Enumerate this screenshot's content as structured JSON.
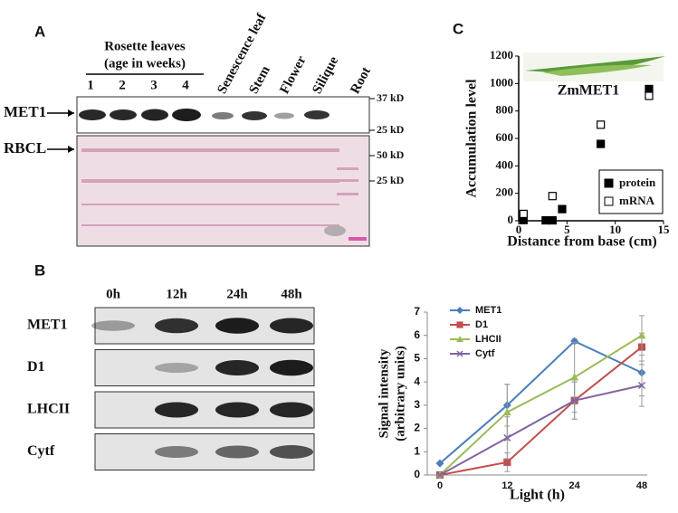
{
  "panel_a": {
    "label": "A",
    "group": [
      "Rosette leaves",
      "(age in weeks)"
    ],
    "lanes": [
      "1",
      "2",
      "3",
      "4"
    ],
    "tissues": [
      "Senescence leaf",
      "Stem",
      "Flower",
      "Silique",
      "Root"
    ],
    "rows": [
      "MET1",
      "RBCL"
    ],
    "markers": [
      "37 kD",
      "25 kD",
      "50 kD",
      "25 kD"
    ]
  },
  "panel_b": {
    "label": "B",
    "times": [
      "0h",
      "12h",
      "24h",
      "48h"
    ],
    "rows": [
      "MET1",
      "D1",
      "LHCII",
      "Cytf"
    ]
  },
  "panel_c": {
    "label": "C"
  },
  "chart_data": [
    {
      "type": "scatter",
      "annotation": "ZmMET1",
      "xlabel": "Distance from base (cm)",
      "ylabel": "Accumulation level",
      "xlim": [
        0,
        15
      ],
      "xticks": [
        0,
        5,
        10,
        15
      ],
      "ylim": [
        0,
        1200
      ],
      "yticks": [
        0,
        200,
        400,
        600,
        800,
        1000,
        1200
      ],
      "legend": "lower right",
      "series": [
        {
          "name": "protein",
          "color": "#000000",
          "marker": "filled-square",
          "x": [
            0.5,
            2.8,
            3.5,
            4.5,
            8.5,
            13.5
          ],
          "values": [
            5,
            3,
            3,
            85,
            560,
            960
          ]
        },
        {
          "name": "mRNA",
          "color": "#000000",
          "marker": "open-square",
          "x": [
            0.5,
            3.5,
            8.5,
            13.5
          ],
          "values": [
            50,
            180,
            700,
            910
          ]
        }
      ]
    },
    {
      "type": "line",
      "xlabel": "Light (h)",
      "ylabel": [
        "Signal intensity",
        "(arbitrary units)"
      ],
      "categories": [
        "0",
        "12",
        "24",
        "48"
      ],
      "ylim": [
        0,
        7
      ],
      "yticks": [
        0,
        1,
        2,
        3,
        4,
        5,
        6,
        7
      ],
      "legend": "upper left",
      "series": [
        {
          "name": "MET1",
          "color": "#4a7ebb",
          "marker": "diamond",
          "values": [
            0.5,
            3.0,
            5.75,
            4.4
          ],
          "errors": [
            0,
            0.9,
            0.1,
            1.0
          ]
        },
        {
          "name": "D1",
          "color": "#c0504d",
          "marker": "square",
          "values": [
            0,
            0.55,
            3.2,
            5.5
          ],
          "errors": [
            0,
            0.4,
            0.8,
            0.6
          ]
        },
        {
          "name": "LHCII",
          "color": "#9bbb59",
          "marker": "triangle",
          "values": [
            0,
            2.7,
            4.2,
            6.0
          ],
          "errors": [
            0,
            1.2,
            1.5,
            0.85
          ]
        },
        {
          "name": "Cytf",
          "color": "#8064a2",
          "marker": "cross",
          "values": [
            0,
            1.6,
            3.2,
            3.85
          ],
          "errors": [
            0,
            0.9,
            0.8,
            0.9
          ]
        }
      ]
    }
  ]
}
